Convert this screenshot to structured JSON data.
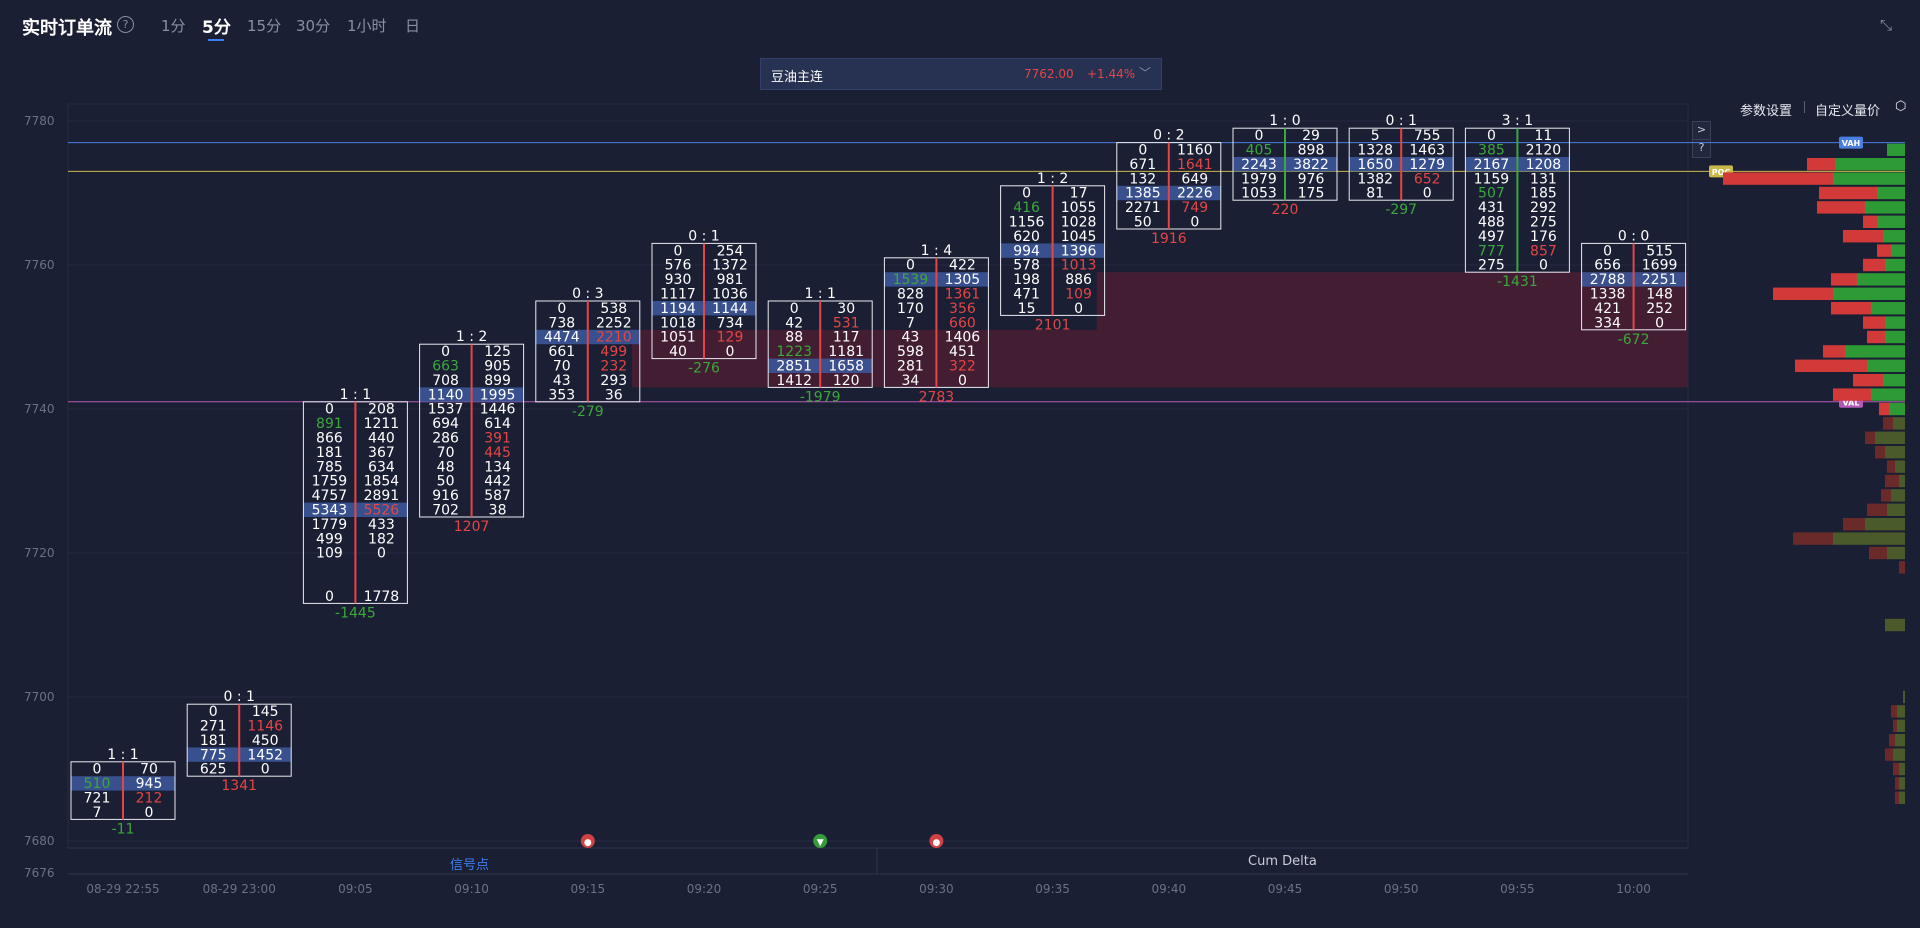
{
  "header": {
    "title": "实时订单流",
    "help": "?",
    "timeframes": [
      "1分",
      "5分",
      "15分",
      "30分",
      "1小时",
      "日"
    ],
    "active_timeframe": "5分"
  },
  "symbol": {
    "name": "豆油主连",
    "price": "7762.00",
    "change": "+1.44%",
    "dropdown": "﹀"
  },
  "controls": {
    "params": "参数设置",
    "custom_volume_price": "自定义量价",
    "side_btn_1": ">",
    "side_btn_2": "?"
  },
  "footer": {
    "signal_tab": "信号点",
    "cum_delta_tab": "Cum Delta"
  },
  "colors": {
    "background": "#1b1f33",
    "buy_green": "#3aa83a",
    "sell_red": "#e64545",
    "poc_highlight": "#3c5597",
    "vah_line": "#4a7fe0",
    "poc_line": "#c9b84a",
    "val_line": "#b25bb5",
    "imbalance_zone": "#4a1f33"
  },
  "chart_data": {
    "type": "footprint",
    "instrument": "豆油主连",
    "ylim": [
      7676,
      7780
    ],
    "y_ticks": [
      7780,
      7760,
      7740,
      7720,
      7700,
      7680,
      7676
    ],
    "x_ticks": [
      "08-29 22:55",
      "08-29 23:00",
      "09:05",
      "09:10",
      "09:15",
      "09:20",
      "09:25",
      "09:30",
      "09:35",
      "09:40",
      "09:45",
      "09:50",
      "09:55",
      "10:00"
    ],
    "price_step": 2,
    "reference_lines": [
      {
        "label": "VAH",
        "price": 7777
      },
      {
        "label": "POC",
        "price": 7773
      },
      {
        "label": "VAL",
        "price": 7741
      }
    ],
    "zones": [
      {
        "from": 7752,
        "to": 7758,
        "start_bar": 9,
        "end_bar": 13
      },
      {
        "from": 7744,
        "to": 7750,
        "start_bar": 5,
        "end_bar": 13
      }
    ],
    "bars": [
      {
        "time": "08-29 22:55",
        "head": "1 : 1",
        "top": 7690,
        "delta": "-11",
        "delta_color": "green",
        "poc_row": 1,
        "bid": [
          "0",
          "510",
          "721",
          "7"
        ],
        "ask": [
          "70",
          "945",
          "212",
          "0"
        ],
        "bid_col": [
          "w",
          "g",
          "w",
          "w"
        ],
        "ask_col": [
          "w",
          "w",
          "r",
          "w"
        ],
        "line_color": "red"
      },
      {
        "time": "08-29 23:00",
        "head": "0 : 1",
        "top": 7698,
        "delta": "1341",
        "delta_color": "red",
        "poc_row": 3,
        "bid": [
          "0",
          "271",
          "181",
          "775",
          "625"
        ],
        "ask": [
          "145",
          "1146",
          "450",
          "1452",
          "0"
        ],
        "bid_col": [
          "w",
          "w",
          "w",
          "w",
          "w"
        ],
        "ask_col": [
          "w",
          "r",
          "w",
          "w",
          "w"
        ],
        "line_color": "red"
      },
      {
        "time": "09:05",
        "head": "1 : 1",
        "top": 7740,
        "delta": "-1445",
        "delta_color": "green",
        "poc_row": 7,
        "bid": [
          "0",
          "891",
          "866",
          "181",
          "785",
          "1759",
          "4757",
          "5343",
          "1779",
          "499",
          "109",
          "",
          "",
          "0"
        ],
        "ask": [
          "208",
          "1211",
          "440",
          "367",
          "634",
          "1854",
          "2891",
          "5526",
          "433",
          "182",
          "0",
          "",
          "",
          "1778"
        ],
        "bid_col": [
          "w",
          "g",
          "w",
          "w",
          "w",
          "w",
          "w",
          "w",
          "w",
          "w",
          "w",
          "w",
          "w",
          "w"
        ],
        "ask_col": [
          "w",
          "w",
          "w",
          "w",
          "w",
          "w",
          "w",
          "r",
          "w",
          "w",
          "w",
          "w",
          "w",
          "w"
        ],
        "line_color": "red"
      },
      {
        "time": "09:10",
        "head": "1 : 2",
        "top": 7748,
        "delta": "1207",
        "delta_color": "red",
        "poc_row": 3,
        "bid": [
          "0",
          "663",
          "708",
          "1140",
          "1537",
          "694",
          "286",
          "70",
          "48",
          "50",
          "916",
          "702"
        ],
        "ask": [
          "125",
          "905",
          "899",
          "1995",
          "1446",
          "614",
          "391",
          "445",
          "134",
          "442",
          "587",
          "38"
        ],
        "bid_col": [
          "w",
          "g",
          "w",
          "w",
          "w",
          "w",
          "w",
          "w",
          "w",
          "w",
          "w",
          "w"
        ],
        "ask_col": [
          "w",
          "w",
          "w",
          "w",
          "w",
          "w",
          "r",
          "r",
          "w",
          "w",
          "w",
          "w"
        ],
        "line_color": "red"
      },
      {
        "time": "09:15",
        "head": "0 : 3",
        "top": 7754,
        "delta": "-279",
        "delta_color": "green",
        "poc_row": 2,
        "bid": [
          "0",
          "738",
          "4474",
          "661",
          "70",
          "43",
          "353"
        ],
        "ask": [
          "538",
          "2252",
          "2210",
          "499",
          "232",
          "293",
          "36"
        ],
        "bid_col": [
          "w",
          "w",
          "w",
          "w",
          "w",
          "w",
          "w"
        ],
        "ask_col": [
          "w",
          "w",
          "r",
          "r",
          "r",
          "w",
          "w"
        ],
        "line_color": "red"
      },
      {
        "time": "09:20",
        "head": "0 : 1",
        "top": 7762,
        "delta": "-276",
        "delta_color": "green",
        "poc_row": 4,
        "bid": [
          "0",
          "576",
          "930",
          "1117",
          "1194",
          "1018",
          "1051",
          "40"
        ],
        "ask": [
          "254",
          "1372",
          "981",
          "1036",
          "1144",
          "734",
          "129",
          "0"
        ],
        "bid_col": [
          "w",
          "w",
          "w",
          "w",
          "w",
          "w",
          "w",
          "w"
        ],
        "ask_col": [
          "w",
          "w",
          "w",
          "w",
          "w",
          "w",
          "r",
          "w"
        ],
        "line_color": "red"
      },
      {
        "time": "09:25",
        "head": "1 : 1",
        "top": 7754,
        "delta": "-1979",
        "delta_color": "green",
        "poc_row": 4,
        "bid": [
          "0",
          "42",
          "88",
          "1223",
          "2851",
          "1412"
        ],
        "ask": [
          "30",
          "531",
          "117",
          "1181",
          "1658",
          "120"
        ],
        "bid_col": [
          "w",
          "w",
          "w",
          "g",
          "w",
          "w"
        ],
        "ask_col": [
          "w",
          "r",
          "w",
          "w",
          "w",
          "w"
        ],
        "line_color": "red"
      },
      {
        "time": "09:30",
        "head": "1 : 4",
        "top": 7760,
        "delta": "2783",
        "delta_color": "red",
        "poc_row": 1,
        "bid": [
          "0",
          "1539",
          "828",
          "170",
          "7",
          "43",
          "598",
          "281",
          "34"
        ],
        "ask": [
          "422",
          "1305",
          "1361",
          "356",
          "660",
          "1406",
          "451",
          "322",
          "0"
        ],
        "bid_col": [
          "w",
          "g",
          "w",
          "w",
          "w",
          "w",
          "w",
          "w",
          "w"
        ],
        "ask_col": [
          "w",
          "w",
          "r",
          "r",
          "r",
          "w",
          "w",
          "r",
          "w"
        ],
        "line_color": "red"
      },
      {
        "time": "09:35",
        "head": "1 : 2",
        "top": 7770,
        "delta": "2101",
        "delta_color": "red",
        "poc_row": 4,
        "bid": [
          "0",
          "416",
          "1156",
          "620",
          "994",
          "578",
          "198",
          "471",
          "15"
        ],
        "ask": [
          "17",
          "1055",
          "1028",
          "1045",
          "1396",
          "1013",
          "886",
          "109",
          "0"
        ],
        "bid_col": [
          "w",
          "g",
          "w",
          "w",
          "w",
          "w",
          "w",
          "w",
          "w"
        ],
        "ask_col": [
          "w",
          "w",
          "w",
          "w",
          "w",
          "r",
          "w",
          "r",
          "w"
        ],
        "line_color": "red"
      },
      {
        "time": "09:40",
        "head": "0 : 2",
        "top": 7776,
        "delta": "1916",
        "delta_color": "red",
        "poc_row": 3,
        "bid": [
          "0",
          "671",
          "132",
          "1385",
          "2271",
          "50"
        ],
        "ask": [
          "1160",
          "1641",
          "649",
          "2226",
          "749",
          "0"
        ],
        "bid_col": [
          "w",
          "w",
          "w",
          "w",
          "w",
          "w"
        ],
        "ask_col": [
          "w",
          "r",
          "w",
          "w",
          "r",
          "w"
        ],
        "line_color": "red"
      },
      {
        "time": "09:45",
        "head": "1 : 0",
        "top": 7778,
        "delta": "220",
        "delta_color": "red",
        "poc_row": 2,
        "bid": [
          "0",
          "405",
          "2243",
          "1979",
          "1053"
        ],
        "ask": [
          "29",
          "898",
          "3822",
          "976",
          "175"
        ],
        "bid_col": [
          "w",
          "g",
          "w",
          "w",
          "w"
        ],
        "ask_col": [
          "w",
          "w",
          "w",
          "w",
          "w"
        ],
        "line_color": "green"
      },
      {
        "time": "09:50",
        "head": "0 : 1",
        "top": 7778,
        "delta": "-297",
        "delta_color": "green",
        "poc_row": 2,
        "bid": [
          "5",
          "1328",
          "1650",
          "1382",
          "81"
        ],
        "ask": [
          "755",
          "1463",
          "1279",
          "652",
          "0"
        ],
        "bid_col": [
          "w",
          "w",
          "w",
          "w",
          "w"
        ],
        "ask_col": [
          "w",
          "w",
          "w",
          "r",
          "w"
        ],
        "line_color": "red"
      },
      {
        "time": "09:55",
        "head": "3 : 1",
        "top": 7778,
        "delta": "-1431",
        "delta_color": "green",
        "poc_row": 2,
        "bid": [
          "0",
          "385",
          "2167",
          "1159",
          "507",
          "431",
          "488",
          "497",
          "777",
          "275"
        ],
        "ask": [
          "11",
          "2120",
          "1208",
          "131",
          "185",
          "292",
          "275",
          "176",
          "857",
          "0"
        ],
        "bid_col": [
          "w",
          "g",
          "w",
          "w",
          "g",
          "w",
          "w",
          "w",
          "g",
          "w"
        ],
        "ask_col": [
          "w",
          "w",
          "w",
          "w",
          "w",
          "w",
          "w",
          "w",
          "r",
          "w"
        ],
        "line_color": "green"
      },
      {
        "time": "10:00",
        "head": "0 : 0",
        "top": 7762,
        "delta": "-672",
        "delta_color": "green",
        "poc_row": 2,
        "bid": [
          "0",
          "656",
          "2788",
          "1338",
          "421",
          "334"
        ],
        "ask": [
          "515",
          "1699",
          "2251",
          "148",
          "252",
          "0"
        ],
        "bid_col": [
          "w",
          "w",
          "w",
          "w",
          "w",
          "w"
        ],
        "ask_col": [
          "w",
          "w",
          "w",
          "w",
          "w",
          "w"
        ],
        "line_color": "red"
      }
    ],
    "volume_profile": [
      {
        "price": 7778,
        "red": 0,
        "green": 0
      },
      {
        "price": 7776,
        "red": 0,
        "green": 18
      },
      {
        "price": 7774,
        "red": 28,
        "green": 70
      },
      {
        "price": 7772,
        "red": 110,
        "green": 72
      },
      {
        "price": 7770,
        "red": 58,
        "green": 28
      },
      {
        "price": 7768,
        "red": 48,
        "green": 40
      },
      {
        "price": 7766,
        "red": 14,
        "green": 28
      },
      {
        "price": 7764,
        "red": 40,
        "green": 22
      },
      {
        "price": 7762,
        "red": 14,
        "green": 14
      },
      {
        "price": 7760,
        "red": 22,
        "green": 20
      },
      {
        "price": 7758,
        "red": 26,
        "green": 48
      },
      {
        "price": 7756,
        "red": 60,
        "green": 72
      },
      {
        "price": 7754,
        "red": 40,
        "green": 34
      },
      {
        "price": 7752,
        "red": 22,
        "green": 20
      },
      {
        "price": 7750,
        "red": 18,
        "green": 20
      },
      {
        "price": 7748,
        "red": 22,
        "green": 60
      },
      {
        "price": 7746,
        "red": 72,
        "green": 38
      },
      {
        "price": 7744,
        "red": 30,
        "green": 22
      },
      {
        "price": 7742,
        "red": 38,
        "green": 34
      },
      {
        "price": 7740,
        "red": 10,
        "green": 16
      },
      {
        "price": 7738,
        "red": 10,
        "green": 12
      },
      {
        "price": 7736,
        "red": 10,
        "green": 30
      },
      {
        "price": 7734,
        "red": 10,
        "green": 20
      },
      {
        "price": 7732,
        "red": 8,
        "green": 10
      },
      {
        "price": 7730,
        "red": 14,
        "green": 6
      },
      {
        "price": 7728,
        "red": 10,
        "green": 14
      },
      {
        "price": 7726,
        "red": 20,
        "green": 18
      },
      {
        "price": 7724,
        "red": 22,
        "green": 40
      },
      {
        "price": 7722,
        "red": 40,
        "green": 72
      },
      {
        "price": 7720,
        "red": 18,
        "green": 18
      },
      {
        "price": 7718,
        "red": 6,
        "green": 0
      },
      {
        "price": 7710,
        "red": 0,
        "green": 20
      },
      {
        "price": 7700,
        "red": 0,
        "green": 2
      },
      {
        "price": 7698,
        "red": 6,
        "green": 8
      },
      {
        "price": 7696,
        "red": 4,
        "green": 8
      },
      {
        "price": 7694,
        "red": 6,
        "green": 10
      },
      {
        "price": 7692,
        "red": 8,
        "green": 12
      },
      {
        "price": 7690,
        "red": 6,
        "green": 6
      },
      {
        "price": 7688,
        "red": 4,
        "green": 6
      },
      {
        "price": 7686,
        "red": 4,
        "green": 6
      }
    ],
    "signals": [
      {
        "bar": 4,
        "color": "red",
        "icon": "●"
      },
      {
        "bar": 6,
        "color": "green",
        "icon": "▼"
      },
      {
        "bar": 7,
        "color": "red",
        "icon": "●"
      }
    ]
  }
}
